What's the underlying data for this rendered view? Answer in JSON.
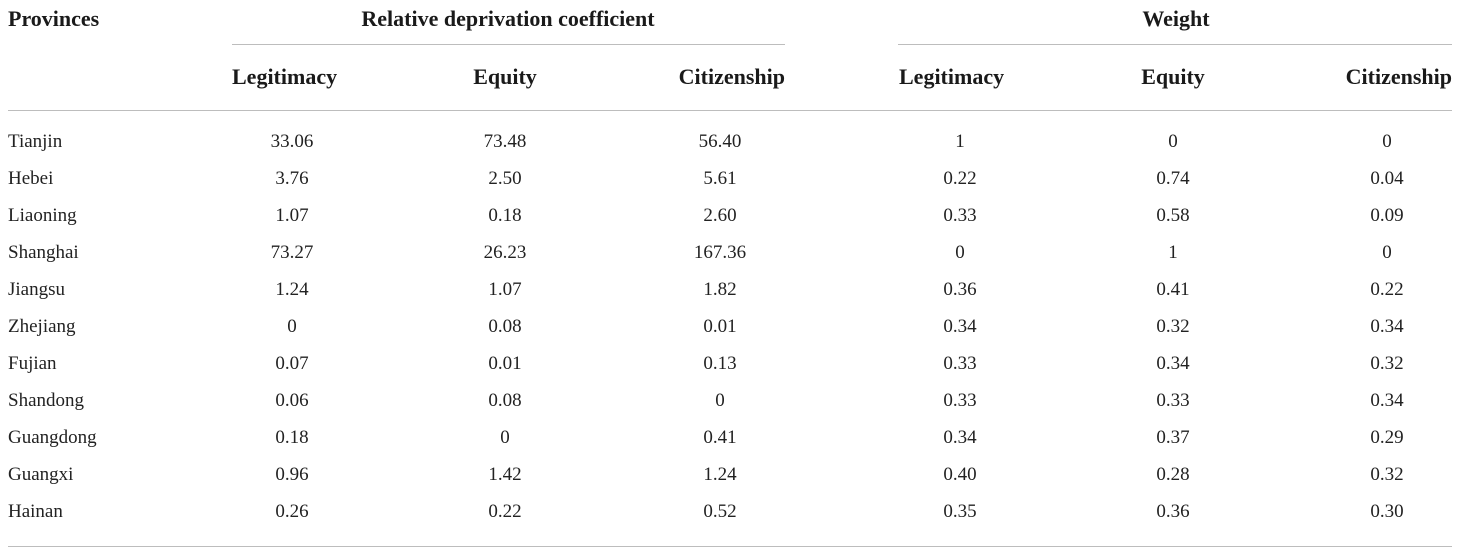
{
  "table": {
    "row_header_label": "Provinces",
    "group_headers": [
      "Relative deprivation coefficient",
      "Weight"
    ],
    "columns": [
      "Legitimacy",
      "Equity",
      "Citizenship",
      "Legitimacy",
      "Equity",
      "Citizenship"
    ],
    "rows": [
      {
        "province": "Tianjin",
        "values": [
          "33.06",
          "73.48",
          "56.40",
          "1",
          "0",
          "0"
        ]
      },
      {
        "province": "Hebei",
        "values": [
          "3.76",
          "2.50",
          "5.61",
          "0.22",
          "0.74",
          "0.04"
        ]
      },
      {
        "province": "Liaoning",
        "values": [
          "1.07",
          "0.18",
          "2.60",
          "0.33",
          "0.58",
          "0.09"
        ]
      },
      {
        "province": "Shanghai",
        "values": [
          "73.27",
          "26.23",
          "167.36",
          "0",
          "1",
          "0"
        ]
      },
      {
        "province": "Jiangsu",
        "values": [
          "1.24",
          "1.07",
          "1.82",
          "0.36",
          "0.41",
          "0.22"
        ]
      },
      {
        "province": "Zhejiang",
        "values": [
          "0",
          "0.08",
          "0.01",
          "0.34",
          "0.32",
          "0.34"
        ]
      },
      {
        "province": "Fujian",
        "values": [
          "0.07",
          "0.01",
          "0.13",
          "0.33",
          "0.34",
          "0.32"
        ]
      },
      {
        "province": "Shandong",
        "values": [
          "0.06",
          "0.08",
          "0",
          "0.33",
          "0.33",
          "0.34"
        ]
      },
      {
        "province": "Guangdong",
        "values": [
          "0.18",
          "0",
          "0.41",
          "0.34",
          "0.37",
          "0.29"
        ]
      },
      {
        "province": "Guangxi",
        "values": [
          "0.96",
          "1.42",
          "1.24",
          "0.40",
          "0.28",
          "0.32"
        ]
      },
      {
        "province": "Hainan",
        "values": [
          "0.26",
          "0.22",
          "0.52",
          "0.35",
          "0.36",
          "0.30"
        ]
      }
    ]
  }
}
